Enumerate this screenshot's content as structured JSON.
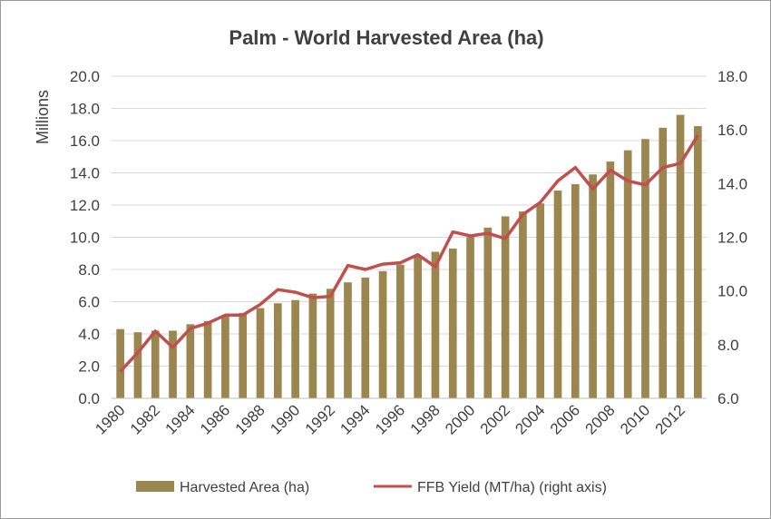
{
  "chart_data": {
    "type": "bar",
    "title": "Palm - World Harvested Area (ha)",
    "ylabel": "Millions",
    "ylim": [
      0,
      20
    ],
    "yticks": [
      "0.0",
      "2.0",
      "4.0",
      "6.0",
      "8.0",
      "10.0",
      "12.0",
      "14.0",
      "16.0",
      "18.0",
      "20.0"
    ],
    "y2lim": [
      6,
      18
    ],
    "y2ticks": [
      "6.0",
      "8.0",
      "10.0",
      "12.0",
      "14.0",
      "16.0",
      "18.0"
    ],
    "x": [
      1980,
      1981,
      1982,
      1983,
      1984,
      1985,
      1986,
      1987,
      1988,
      1989,
      1990,
      1991,
      1992,
      1993,
      1994,
      1995,
      1996,
      1997,
      1998,
      1999,
      2000,
      2001,
      2002,
      2003,
      2004,
      2005,
      2006,
      2007,
      2008,
      2009,
      2010,
      2011,
      2012,
      2013
    ],
    "xtick_labels": [
      "1980",
      "1982",
      "1984",
      "1986",
      "1988",
      "1990",
      "1992",
      "1994",
      "1996",
      "1998",
      "2000",
      "2002",
      "2004",
      "2006",
      "2008",
      "2010",
      "2012"
    ],
    "series": [
      {
        "name": "Harvested Area (ha)",
        "type": "bar",
        "axis": "left",
        "color": "#9c8650",
        "values": [
          4.3,
          4.1,
          4.2,
          4.2,
          4.6,
          4.8,
          5.1,
          5.3,
          5.6,
          5.9,
          6.1,
          6.5,
          6.8,
          7.2,
          7.5,
          7.9,
          8.3,
          8.8,
          9.1,
          9.3,
          10.0,
          10.6,
          11.3,
          11.6,
          12.1,
          12.9,
          13.3,
          13.9,
          14.7,
          15.4,
          16.1,
          16.8,
          17.6,
          16.9
        ]
      },
      {
        "name": "FFB Yield (MT/ha) (right axis)",
        "type": "line",
        "axis": "right",
        "color": "#c0504d",
        "values": [
          7.0,
          7.7,
          8.5,
          7.9,
          8.6,
          8.8,
          9.1,
          9.1,
          9.5,
          10.05,
          9.95,
          9.75,
          9.8,
          10.95,
          10.8,
          11.0,
          11.05,
          11.35,
          10.9,
          12.2,
          12.05,
          12.15,
          11.95,
          12.85,
          13.3,
          14.1,
          14.6,
          13.8,
          14.5,
          14.1,
          13.95,
          14.6,
          14.75,
          15.8
        ]
      }
    ],
    "legend": "bottom",
    "grid": true
  }
}
